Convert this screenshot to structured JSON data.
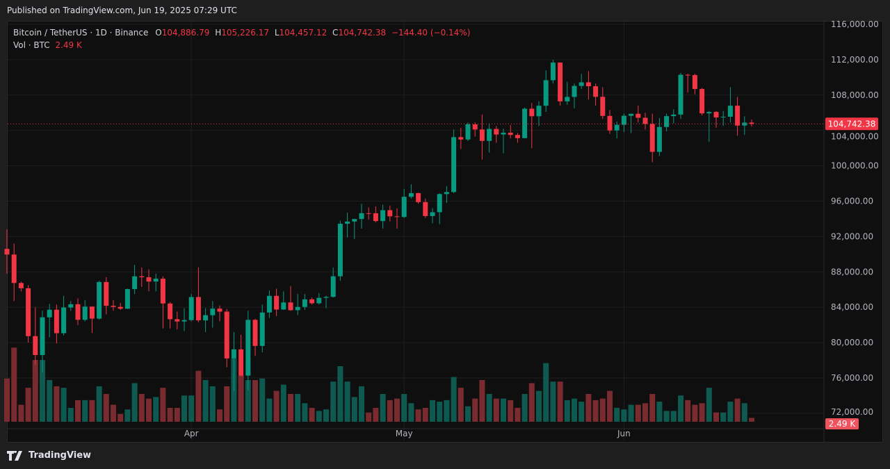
{
  "published": "Published on TradingView.com, Jun 19, 2025 07:29 UTC",
  "legend": {
    "symbol": "Bitcoin / TetherUS · 1D · Binance",
    "o_label": "O",
    "o": "104,886.79",
    "h_label": "H",
    "h": "105,226.17",
    "l_label": "L",
    "l": "104,457.12",
    "c_label": "C",
    "c": "104,742.38",
    "change": "−144.40 (−0.14%)",
    "vol_label": "Vol · BTC",
    "vol": "2.49 K"
  },
  "footer": {
    "brand": "TradingView"
  },
  "colors": {
    "up": "#089981",
    "down": "#f23645",
    "up_vol": "#0e5a50",
    "down_vol": "#7a2b30"
  },
  "chart_data": {
    "type": "candlestick",
    "title": "Bitcoin / TetherUS · 1D · Binance",
    "ylim": [
      70000,
      117000
    ],
    "y_ticks": [
      116000,
      112000,
      108000,
      104000,
      100000,
      96000,
      92000,
      88000,
      84000,
      80000,
      76000,
      72000
    ],
    "y_tick_labels": [
      "116,000.00",
      "112,000.00",
      "108,000.00",
      "104,000.00",
      "100,000.00",
      "96,000.00",
      "92,000.00",
      "88,000.00",
      "84,000.00",
      "80,000.00",
      "76,000.00",
      "72,000.00"
    ],
    "x_ticks": [
      {
        "index": 26,
        "label": "Apr"
      },
      {
        "index": 56,
        "label": "May"
      },
      {
        "index": 87,
        "label": "Jun"
      }
    ],
    "last_price": 104742.38,
    "last_price_label": "104,742.38",
    "last_volume_label": "2.49 K",
    "volume_unit": "K BTC",
    "columns": [
      "date",
      "open",
      "high",
      "low",
      "close",
      "volume_k"
    ],
    "candles": [
      [
        "Mar 6",
        90600,
        92800,
        87800,
        89960,
        28
      ],
      [
        "Mar 7",
        89960,
        91200,
        84700,
        86742,
        48
      ],
      [
        "Mar 8",
        86742,
        86900,
        85800,
        86150,
        11
      ],
      [
        "Mar 9",
        86150,
        86500,
        80000,
        80734,
        22
      ],
      [
        "Mar 10",
        80734,
        84000,
        77500,
        78595,
        40
      ],
      [
        "Mar 11",
        78595,
        83600,
        76600,
        82862,
        40
      ],
      [
        "Mar 12",
        82862,
        84400,
        80600,
        83722,
        27
      ],
      [
        "Mar 13",
        83722,
        84300,
        79900,
        81066,
        23
      ],
      [
        "Mar 14",
        81066,
        85300,
        80800,
        83969,
        22
      ],
      [
        "Mar 15",
        83969,
        84700,
        83600,
        84343,
        9
      ],
      [
        "Mar 16",
        84343,
        85000,
        82000,
        82579,
        14
      ],
      [
        "Mar 17",
        82579,
        84800,
        82400,
        84075,
        14
      ],
      [
        "Mar 18",
        84075,
        84100,
        81100,
        82718,
        14
      ],
      [
        "Mar 19",
        82718,
        87000,
        82600,
        86854,
        23
      ],
      [
        "Mar 20",
        86854,
        87400,
        83200,
        84167,
        18
      ],
      [
        "Mar 21",
        84167,
        84800,
        83600,
        84043,
        11
      ],
      [
        "Mar 22",
        84043,
        84500,
        83700,
        83832,
        5
      ],
      [
        "Mar 23",
        83832,
        86100,
        83800,
        86054,
        8
      ],
      [
        "Mar 24",
        86054,
        88800,
        85500,
        87498,
        25
      ],
      [
        "Mar 25",
        87498,
        88500,
        86300,
        87392,
        18
      ],
      [
        "Mar 26",
        87392,
        88300,
        85800,
        86909,
        15
      ],
      [
        "Mar 27",
        86909,
        87800,
        85800,
        87232,
        16
      ],
      [
        "Mar 28",
        87232,
        87500,
        81600,
        84424,
        22
      ],
      [
        "Mar 29",
        84424,
        84600,
        81600,
        82648,
        9
      ],
      [
        "Mar 30",
        82648,
        83500,
        81500,
        82389,
        9
      ],
      [
        "Mar 31",
        82389,
        83900,
        81300,
        82550,
        17
      ],
      [
        "Apr 1",
        82550,
        85500,
        82400,
        85158,
        17
      ],
      [
        "Apr 2",
        85158,
        88500,
        82300,
        82516,
        33
      ],
      [
        "Apr 3",
        82516,
        83900,
        81200,
        83102,
        27
      ],
      [
        "Apr 4",
        83102,
        84700,
        81700,
        83844,
        23
      ],
      [
        "Apr 5",
        83844,
        84200,
        82400,
        83504,
        8
      ],
      [
        "Apr 6",
        83504,
        83800,
        77200,
        78214,
        23
      ],
      [
        "Apr 7",
        78214,
        81200,
        74500,
        79235,
        41
      ],
      [
        "Apr 8",
        79235,
        80900,
        76200,
        76271,
        30
      ],
      [
        "Apr 9",
        76271,
        83600,
        74600,
        82573,
        27
      ],
      [
        "Apr 10",
        82573,
        82700,
        78500,
        79626,
        27
      ],
      [
        "Apr 11",
        79626,
        84300,
        78900,
        83404,
        28
      ],
      [
        "Apr 12",
        83404,
        85900,
        82800,
        85287,
        15
      ],
      [
        "Apr 13",
        85287,
        86100,
        83000,
        83740,
        20
      ],
      [
        "Apr 14",
        83740,
        85800,
        83700,
        84542,
        24
      ],
      [
        "Apr 15",
        84542,
        86400,
        83600,
        83668,
        18
      ],
      [
        "Apr 16",
        83668,
        85500,
        83100,
        84033,
        18
      ],
      [
        "Apr 17",
        84033,
        85500,
        83700,
        84895,
        12
      ],
      [
        "Apr 18",
        84895,
        85100,
        84300,
        84450,
        9
      ],
      [
        "Apr 19",
        84450,
        85600,
        84300,
        85064,
        7
      ],
      [
        "Apr 20",
        85064,
        85300,
        83900,
        85171,
        8
      ],
      [
        "Apr 21",
        85171,
        88500,
        85100,
        87500,
        26
      ],
      [
        "Apr 22",
        87500,
        93800,
        87000,
        93442,
        36
      ],
      [
        "Apr 23",
        93442,
        94700,
        91900,
        93691,
        26
      ],
      [
        "Apr 24",
        93691,
        94000,
        91700,
        93980,
        16
      ],
      [
        "Apr 25",
        93980,
        95700,
        92900,
        94638,
        23
      ],
      [
        "Apr 26",
        94638,
        95300,
        93900,
        94628,
        6
      ],
      [
        "Apr 27",
        94628,
        95400,
        93600,
        93750,
        9
      ],
      [
        "Apr 28",
        93750,
        95600,
        92900,
        94978,
        18
      ],
      [
        "Apr 29",
        94978,
        95500,
        93700,
        94284,
        14
      ],
      [
        "Apr 30",
        94284,
        95200,
        92900,
        94207,
        15
      ],
      [
        "May 1",
        94207,
        97400,
        94100,
        96492,
        18
      ],
      [
        "May 2",
        96492,
        97900,
        96300,
        96910,
        12
      ],
      [
        "May 3",
        96910,
        96950,
        95700,
        95891,
        8
      ],
      [
        "May 4",
        95891,
        96300,
        94100,
        94315,
        9
      ],
      [
        "May 5",
        94315,
        95200,
        93500,
        94748,
        14
      ],
      [
        "May 6",
        94748,
        96900,
        93400,
        96802,
        13
      ],
      [
        "May 7",
        96802,
        97700,
        95800,
        97032,
        14
      ],
      [
        "May 8",
        97032,
        104100,
        96900,
        103241,
        29
      ],
      [
        "May 9",
        103241,
        104300,
        101900,
        102970,
        22
      ],
      [
        "May 10",
        102970,
        104900,
        102800,
        104696,
        10
      ],
      [
        "May 11",
        104696,
        104900,
        103300,
        104106,
        15
      ],
      [
        "May 12",
        104106,
        105800,
        100700,
        102812,
        27
      ],
      [
        "May 13",
        102812,
        104800,
        101500,
        104169,
        18
      ],
      [
        "May 14",
        104169,
        104500,
        102600,
        103539,
        15
      ],
      [
        "May 15",
        103539,
        104200,
        101400,
        103745,
        15
      ],
      [
        "May 16",
        103745,
        104600,
        103100,
        103489,
        14
      ],
      [
        "May 17",
        103489,
        103700,
        102600,
        103126,
        9
      ],
      [
        "May 18",
        103126,
        106600,
        103100,
        106455,
        18
      ],
      [
        "May 19",
        106455,
        107100,
        102000,
        105606,
        25
      ],
      [
        "May 20",
        105606,
        107300,
        104500,
        106792,
        20
      ],
      [
        "May 21",
        106792,
        110800,
        106100,
        109679,
        38
      ],
      [
        "May 22",
        109679,
        111980,
        109300,
        111673,
        26
      ],
      [
        "May 23",
        111673,
        111700,
        106800,
        107287,
        26
      ],
      [
        "May 24",
        107287,
        109500,
        106900,
        107791,
        14
      ],
      [
        "May 25",
        107791,
        109300,
        106500,
        109035,
        15
      ],
      [
        "May 26",
        109035,
        110400,
        108700,
        109440,
        13
      ],
      [
        "May 27",
        109440,
        110700,
        107500,
        108995,
        18
      ],
      [
        "May 28",
        108995,
        109300,
        106800,
        107802,
        14
      ],
      [
        "May 29",
        107802,
        108900,
        105300,
        105641,
        15
      ],
      [
        "May 30",
        105641,
        106300,
        103600,
        103998,
        20
      ],
      [
        "May 31",
        103998,
        105000,
        103100,
        104638,
        9
      ],
      [
        "Jun 1",
        104638,
        105900,
        103800,
        105652,
        8
      ],
      [
        "Jun 2",
        105652,
        105900,
        103700,
        105882,
        11
      ],
      [
        "Jun 3",
        105882,
        106800,
        104900,
        105432,
        11
      ],
      [
        "Jun 4",
        105432,
        106000,
        104100,
        104731,
        12
      ],
      [
        "Jun 5",
        104731,
        105900,
        100400,
        101576,
        18
      ],
      [
        "Jun 6",
        101576,
        105400,
        101100,
        104390,
        13
      ],
      [
        "Jun 7",
        104390,
        105900,
        103900,
        105616,
        7
      ],
      [
        "Jun 8",
        105616,
        106400,
        104800,
        105793,
        7
      ],
      [
        "Jun 9",
        105793,
        110500,
        105300,
        110294,
        17
      ],
      [
        "Jun 10",
        110294,
        110400,
        108300,
        110258,
        14
      ],
      [
        "Jun 11",
        110258,
        110400,
        108100,
        108686,
        11
      ],
      [
        "Jun 12",
        108686,
        108800,
        105700,
        105929,
        12
      ],
      [
        "Jun 13",
        105929,
        106200,
        102700,
        106091,
        22
      ],
      [
        "Jun 14",
        106091,
        106200,
        104300,
        105472,
        6
      ],
      [
        "Jun 15",
        105472,
        106200,
        104500,
        105552,
        6
      ],
      [
        "Jun 16",
        105552,
        108900,
        104900,
        106795,
        13
      ],
      [
        "Jun 17",
        106795,
        107800,
        103400,
        104551,
        15
      ],
      [
        "Jun 18",
        104551,
        105600,
        103500,
        104886,
        12
      ],
      [
        "Jun 19",
        104886,
        105226,
        104457,
        104742,
        2.49
      ]
    ]
  }
}
